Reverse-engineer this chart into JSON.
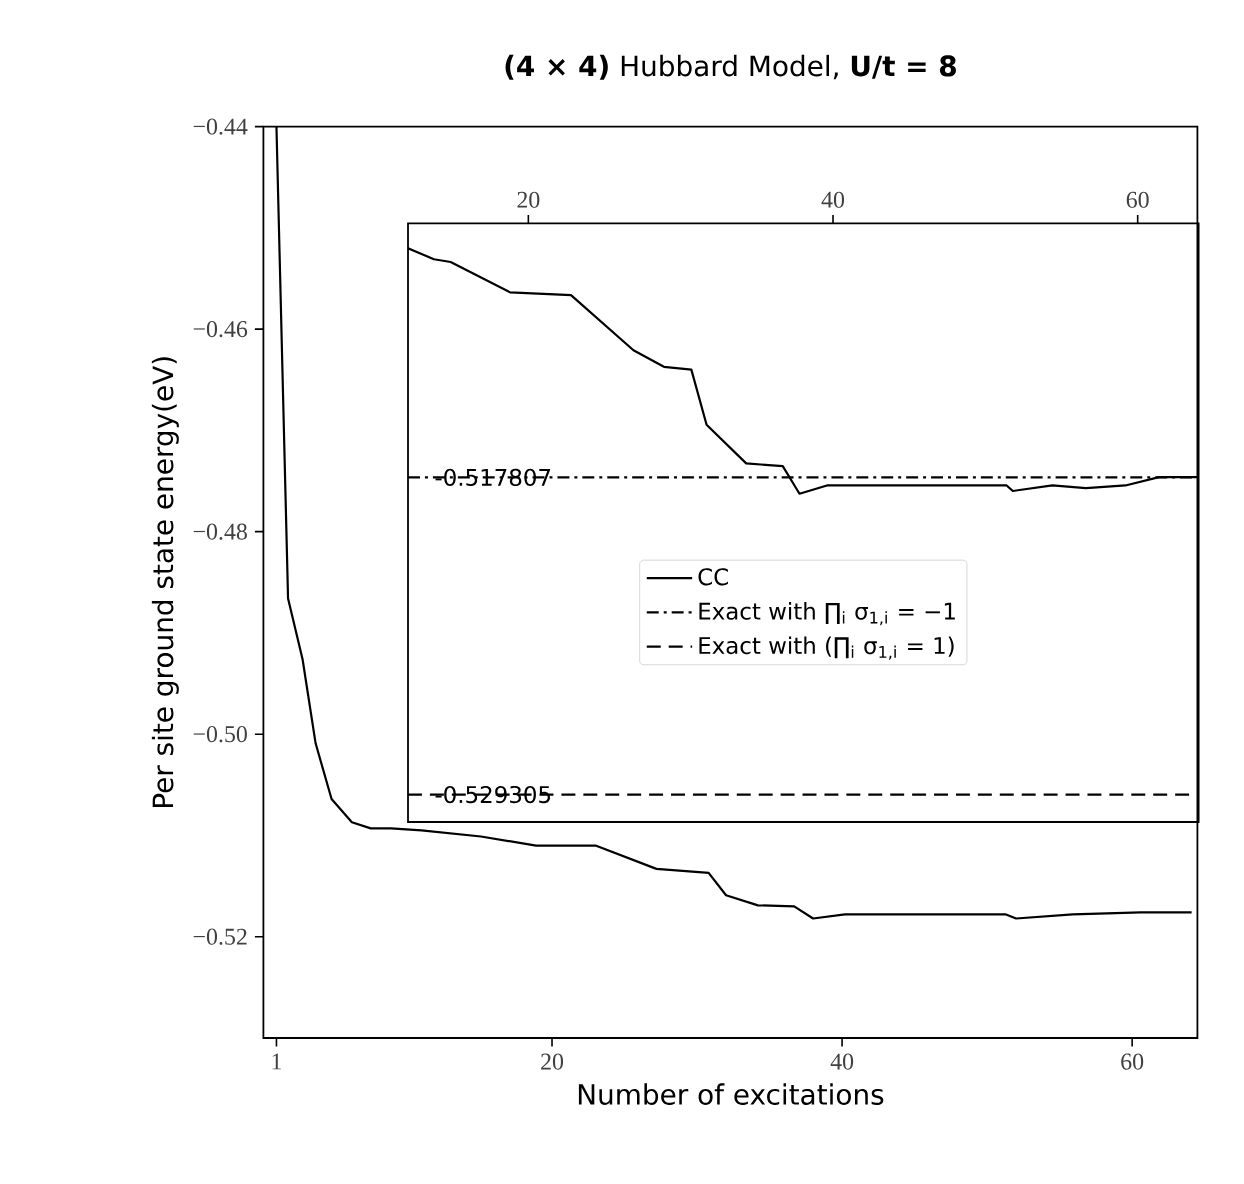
{
  "chart_data": [
    {
      "type": "line",
      "title": "**(4 × 4)** Hubbard Model, **U/t = 8**",
      "xlabel": "Number of excitations",
      "ylabel": "Per site ground state energy(eV)",
      "xlim": [
        0.1,
        64.5
      ],
      "ylim": [
        -0.53,
        -0.44
      ],
      "xticks": [
        1,
        20,
        40,
        60
      ],
      "yticks": [
        {
          "value": -0.52,
          "label": "−0.52"
        },
        {
          "value": -0.5,
          "label": "−0.50"
        },
        {
          "value": -0.48,
          "label": "−0.48"
        },
        {
          "value": -0.46,
          "label": "−0.46"
        },
        {
          "value": -0.44,
          "label": "−0.44"
        }
      ],
      "series": [
        {
          "color": "#000000",
          "x": [
            1,
            1.8,
            2.8,
            3.7,
            4.8,
            6.2,
            7.5,
            8.9,
            11,
            15.1,
            18.9,
            23,
            27.2,
            30.8,
            32,
            34.2,
            36.7,
            38,
            40.2,
            51.3,
            52,
            55.9,
            60.6,
            64.1
          ],
          "values": [
            -0.44,
            -0.4866,
            -0.4926,
            -0.5009,
            -0.5064,
            -0.5087,
            -0.5093,
            -0.5093,
            -0.5095,
            -0.5101,
            -0.511,
            -0.511,
            -0.5133,
            -0.5137,
            -0.5159,
            -0.5169,
            -0.517,
            -0.5182,
            -0.5178,
            -0.5178,
            -0.5182,
            -0.5178,
            -0.5176,
            -0.5176
          ]
        }
      ]
    },
    {
      "type": "line",
      "xlim": [
        12.1,
        64
      ],
      "ylim": [
        -0.5303,
        -0.5086
      ],
      "xticks": [
        20,
        40,
        60
      ],
      "yticks": [
        -0.529305,
        -0.517807
      ],
      "legend": "center",
      "series": [
        {
          "name": "CC",
          "color": "#000000",
          "line_style": "solid",
          "x": [
            12.1,
            13.8,
            14.9,
            18.8,
            22.8,
            26.9,
            28.9,
            30.7,
            31.7,
            34.3,
            36.7,
            37.8,
            39.6,
            51.4,
            51.8,
            54.4,
            56.6,
            59.2,
            61.4,
            64.0
          ],
          "values": [
            -0.5095,
            -0.5099,
            -0.51,
            -0.5111,
            -0.5112,
            -0.5132,
            -0.5138,
            -0.5139,
            -0.5159,
            -0.5173,
            -0.5174,
            -0.5184,
            -0.5181,
            -0.5181,
            -0.5183,
            -0.5181,
            -0.5182,
            -0.5181,
            -0.5178,
            -0.5178
          ]
        },
        {
          "name": "Exact with ∏$_{i}$ σ$_{1,i}$ = −1",
          "color": "#000000",
          "line_style": "dashdot",
          "x": [
            12.1,
            64
          ],
          "values": [
            -0.517807,
            -0.517807
          ]
        },
        {
          "name": "Exact with (∏$_{i}$ σ$_{1,i}$ = 1)",
          "color": "#000000",
          "line_style": "dashed",
          "x": [
            12.1,
            64
          ],
          "values": [
            -0.529305,
            -0.529305
          ]
        }
      ]
    }
  ]
}
